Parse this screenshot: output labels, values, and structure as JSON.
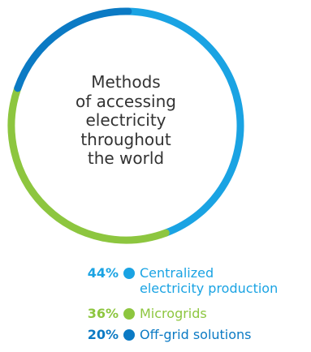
{
  "chart_data": {
    "type": "pie",
    "title_lines": [
      "Methods",
      "of accessing",
      "electricity",
      "throughout",
      "the world"
    ],
    "series": [
      {
        "percent_label": "44%",
        "label_lines": [
          "Centralized",
          "electricity production"
        ],
        "value": 44,
        "color": "#1aa3e3"
      },
      {
        "percent_label": "36%",
        "label_lines": [
          "Microgrids"
        ],
        "value": 36,
        "color": "#8dc63f"
      },
      {
        "percent_label": "20%",
        "label_lines": [
          "Off-grid solutions"
        ],
        "value": 20,
        "color": "#0b7ac4"
      }
    ]
  }
}
